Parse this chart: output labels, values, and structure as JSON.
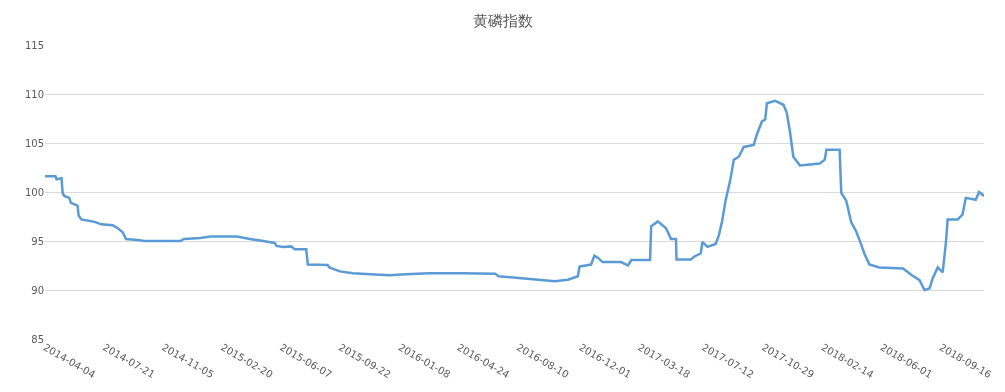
{
  "chart_data": {
    "type": "line",
    "title": "黄磷指数",
    "x": [
      "2014-04-04",
      "2014-04-23",
      "2014-04-25",
      "2014-05-04",
      "2014-05-06",
      "2014-05-09",
      "2014-05-18",
      "2014-05-21",
      "2014-06-02",
      "2014-06-04",
      "2014-06-09",
      "2014-07-03",
      "2014-07-15",
      "2014-08-05",
      "2014-08-14",
      "2014-08-23",
      "2014-08-29",
      "2014-09-19",
      "2014-10-01",
      "2014-12-06",
      "2014-12-12",
      "2015-01-11",
      "2015-01-29",
      "2015-03-18",
      "2015-04-11",
      "2015-05-05",
      "2015-05-26",
      "2015-05-29",
      "2015-06-10",
      "2015-06-25",
      "2015-07-01",
      "2015-07-22",
      "2015-07-25",
      "2015-08-30",
      "2015-09-02",
      "2015-09-21",
      "2015-10-15",
      "2015-12-02",
      "2015-12-20",
      "2016-01-19",
      "2016-03-01",
      "2016-04-30",
      "2016-06-29",
      "2016-07-05",
      "2016-08-16",
      "2016-10-15",
      "2016-11-08",
      "2016-11-26",
      "2016-11-29",
      "2016-12-20",
      "2016-12-26",
      "2017-01-01",
      "2017-01-10",
      "2017-02-12",
      "2017-02-25",
      "2017-03-03",
      "2017-04-06",
      "2017-04-08",
      "2017-04-20",
      "2017-05-05",
      "2017-05-14",
      "2017-05-23",
      "2017-05-24",
      "2017-06-19",
      "2017-06-25",
      "2017-07-07",
      "2017-07-10",
      "2017-07-19",
      "2017-08-03",
      "2017-08-09",
      "2017-08-15",
      "2017-08-21",
      "2017-08-30",
      "2017-09-05",
      "2017-09-14",
      "2017-09-23",
      "2017-10-11",
      "2017-10-17",
      "2017-10-26",
      "2017-11-01",
      "2017-11-04",
      "2017-11-19",
      "2017-12-04",
      "2017-12-10",
      "2017-12-16",
      "2017-12-22",
      "2018-01-03",
      "2018-01-21",
      "2018-02-08",
      "2018-02-17",
      "2018-02-20",
      "2018-03-16",
      "2018-03-19",
      "2018-03-28",
      "2018-04-06",
      "2018-04-15",
      "2018-04-24",
      "2018-04-30",
      "2018-05-09",
      "2018-05-27",
      "2018-07-09",
      "2018-07-24",
      "2018-08-08",
      "2018-08-17",
      "2018-08-26",
      "2018-09-01",
      "2018-09-10",
      "2018-09-19",
      "2018-09-25",
      "2018-09-28",
      "2018-10-16",
      "2018-10-25",
      "2018-10-31",
      "2018-11-18",
      "2018-11-24",
      "2018-12-03"
    ],
    "series": [
      {
        "color": "#5b9bd5",
        "values": [
          101.6,
          101.6,
          101.3,
          101.4,
          99.9,
          99.6,
          99.4,
          98.9,
          98.6,
          97.6,
          97.2,
          96.95,
          96.7,
          96.6,
          96.3,
          95.9,
          95.2,
          95.1,
          95.0,
          95.0,
          95.2,
          95.3,
          95.45,
          95.45,
          95.2,
          95.0,
          94.8,
          94.5,
          94.4,
          94.45,
          94.15,
          94.15,
          92.6,
          92.55,
          92.3,
          91.9,
          91.7,
          91.55,
          91.5,
          91.6,
          91.7,
          91.7,
          91.65,
          91.4,
          91.2,
          90.9,
          91.05,
          91.4,
          92.4,
          92.6,
          93.5,
          93.3,
          92.85,
          92.85,
          92.5,
          93.05,
          93.05,
          96.5,
          97.0,
          96.3,
          95.2,
          95.2,
          93.1,
          93.1,
          93.4,
          93.75,
          94.9,
          94.4,
          94.7,
          95.6,
          97.1,
          99.1,
          101.35,
          103.3,
          103.6,
          104.6,
          104.8,
          105.9,
          107.2,
          107.4,
          109.05,
          109.3,
          108.9,
          108.1,
          106.1,
          103.6,
          102.7,
          102.8,
          102.9,
          103.3,
          104.3,
          104.3,
          99.9,
          99.1,
          96.9,
          96.0,
          94.65,
          93.7,
          92.6,
          92.3,
          92.2,
          91.55,
          91.0,
          90.0,
          90.15,
          91.2,
          92.3,
          91.8,
          94.9,
          97.2,
          97.2,
          97.7,
          99.4,
          99.2,
          100.0,
          99.6
        ]
      }
    ],
    "xlim": [
      "2014-04-04",
      "2018-12-03"
    ],
    "xticks": [
      "2014-04-04",
      "2014-07-21",
      "2014-11-05",
      "2015-02-20",
      "2015-06-07",
      "2015-09-22",
      "2016-01-08",
      "2016-04-24",
      "2016-08-10",
      "2016-12-01",
      "2017-03-18",
      "2017-07-12",
      "2017-10-29",
      "2018-02-14",
      "2018-06-01",
      "2018-09-16"
    ],
    "ylim": [
      85,
      115
    ],
    "yticks": [
      85,
      90,
      95,
      100,
      105,
      110,
      115
    ],
    "grid": "y",
    "legend": false,
    "marker": "none",
    "line_style": "solid"
  }
}
